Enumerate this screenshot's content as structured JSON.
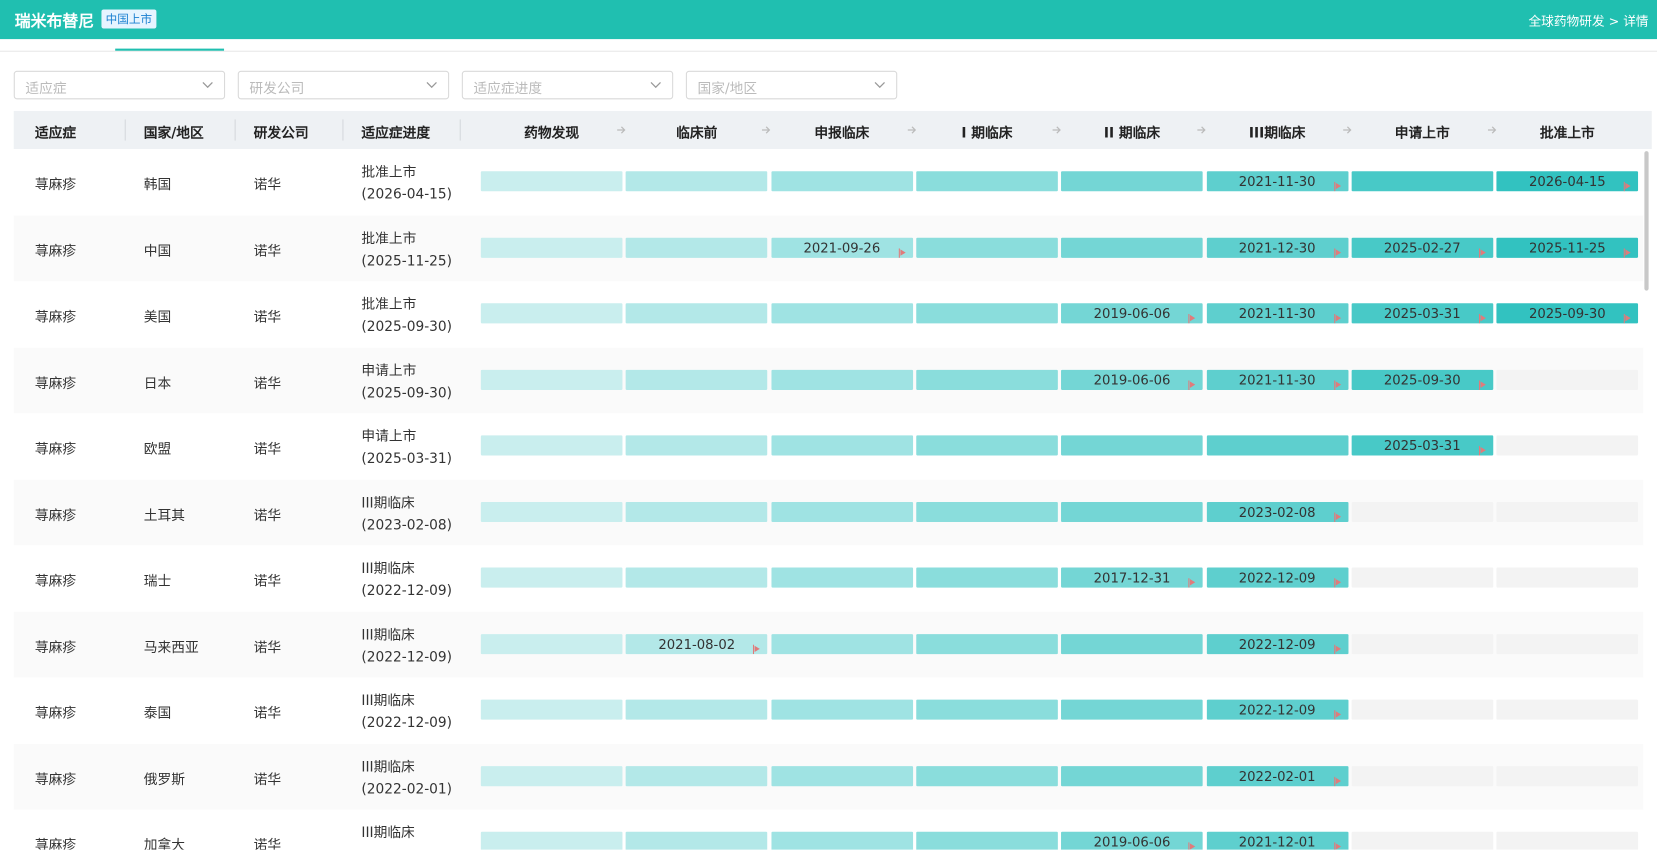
{
  "header": {
    "title": "瑞米布替尼",
    "badge": "中国上市",
    "link": "全球药物研发 > 详情"
  },
  "filters": [
    "适应症",
    "研发公司",
    "适应症进度",
    "国家/地区"
  ],
  "table": {
    "columns": [
      "适应症",
      "国家/地区",
      "研发公司",
      "适应症进度"
    ],
    "phases": [
      "药物发现",
      "临床前",
      "申报临床",
      "I 期临床",
      "II 期临床",
      "III期临床",
      "申请上市",
      "批准上市"
    ],
    "rows": [
      {
        "indication": "荨麻疹",
        "country": "韩国",
        "company": "诺华",
        "status": "批准上市",
        "status_date": "(2026-04-15)",
        "stages": [
          null,
          null,
          null,
          null,
          null,
          "2021-11-30",
          null,
          "2026-04-15"
        ]
      },
      {
        "indication": "荨麻疹",
        "country": "中国",
        "company": "诺华",
        "status": "批准上市",
        "status_date": "(2025-11-25)",
        "stages": [
          null,
          null,
          "2021-09-26",
          null,
          null,
          "2021-12-30",
          "2025-02-27",
          "2025-11-25"
        ]
      },
      {
        "indication": "荨麻疹",
        "country": "美国",
        "company": "诺华",
        "status": "批准上市",
        "status_date": "(2025-09-30)",
        "stages": [
          null,
          null,
          null,
          null,
          "2019-06-06",
          "2021-11-30",
          "2025-03-31",
          "2025-09-30"
        ]
      },
      {
        "indication": "荨麻疹",
        "country": "日本",
        "company": "诺华",
        "status": "申请上市",
        "status_date": "(2025-09-30)",
        "stages": [
          null,
          null,
          null,
          null,
          "2019-06-06",
          "2021-11-30",
          "2025-09-30",
          null
        ]
      },
      {
        "indication": "荨麻疹",
        "country": "欧盟",
        "company": "诺华",
        "status": "申请上市",
        "status_date": "(2025-03-31)",
        "stages": [
          null,
          null,
          null,
          null,
          null,
          null,
          "2025-03-31",
          null
        ]
      },
      {
        "indication": "荨麻疹",
        "country": "土耳其",
        "company": "诺华",
        "status": "III期临床",
        "status_date": "(2023-02-08)",
        "stages": [
          null,
          null,
          null,
          null,
          null,
          "2023-02-08",
          null,
          null
        ]
      },
      {
        "indication": "荨麻疹",
        "country": "瑞士",
        "company": "诺华",
        "status": "III期临床",
        "status_date": "(2022-12-09)",
        "stages": [
          null,
          null,
          null,
          null,
          "2017-12-31",
          "2022-12-09",
          null,
          null
        ]
      },
      {
        "indication": "荨麻疹",
        "country": "马来西亚",
        "company": "诺华",
        "status": "III期临床",
        "status_date": "(2022-12-09)",
        "stages": [
          null,
          "2021-08-02",
          null,
          null,
          null,
          "2022-12-09",
          null,
          null
        ]
      },
      {
        "indication": "荨麻疹",
        "country": "泰国",
        "company": "诺华",
        "status": "III期临床",
        "status_date": "(2022-12-09)",
        "stages": [
          null,
          null,
          null,
          null,
          null,
          "2022-12-09",
          null,
          null
        ]
      },
      {
        "indication": "荨麻疹",
        "country": "俄罗斯",
        "company": "诺华",
        "status": "III期临床",
        "status_date": "(2022-02-01)",
        "stages": [
          null,
          null,
          null,
          null,
          null,
          "2022-02-01",
          null,
          null
        ]
      },
      {
        "indication": "荨麻疹",
        "country": "加拿大",
        "company": "诺华",
        "status": "III期临床",
        "stages": [
          null,
          null,
          null,
          null,
          "2019-06-06",
          "2021-12-01",
          null,
          null
        ]
      }
    ]
  }
}
